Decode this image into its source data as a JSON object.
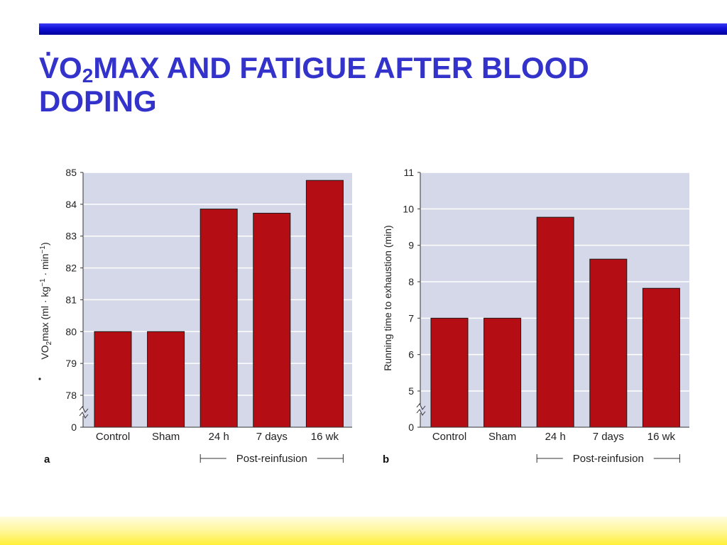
{
  "slide": {
    "title_v": "V",
    "title_dot": "·",
    "title_o": "O",
    "title_sub": "2",
    "title_rest": "MAX AND FATIGUE AFTER BLOOD DOPING"
  },
  "colors": {
    "bar_fill": "#b40d14",
    "plot_bg": "#d5d8e8",
    "title": "#3333cc",
    "top_bar": "#1010d8",
    "bottom_band": "#fff27a"
  },
  "chart_data": [
    {
      "type": "bar",
      "panel_label": "a",
      "categories": [
        "Control",
        "Sham",
        "24 h",
        "7 days",
        "16 wk"
      ],
      "values": [
        80,
        80,
        83.85,
        83.72,
        84.75
      ],
      "ylabel_v": "V",
      "ylabel_o": "O",
      "ylabel_sub": "2",
      "ylabel_rest": "max (ml · kg",
      "ylabel_sup1": "−1",
      "ylabel_mid": " · min",
      "ylabel_sup2": "−1",
      "ylabel_close": ")",
      "ylim": [
        77.5,
        85
      ],
      "axis_break": true,
      "yticks": [
        0,
        78,
        79,
        80,
        81,
        82,
        83,
        84,
        85
      ],
      "ytick_labels": [
        "0",
        "78",
        "79",
        "80",
        "81",
        "82",
        "83",
        "84",
        "85"
      ],
      "grid": true,
      "group_label": "Post-reinfusion",
      "group_categories": [
        "24 h",
        "7 days",
        "16 wk"
      ]
    },
    {
      "type": "bar",
      "panel_label": "b",
      "categories": [
        "Control",
        "Sham",
        "24 h",
        "7 days",
        "16 wk"
      ],
      "values": [
        7.0,
        7.0,
        9.77,
        8.62,
        7.82
      ],
      "ylabel": "Running time to exhaustion (min)",
      "ylim": [
        4.5,
        11
      ],
      "axis_break": true,
      "yticks": [
        0,
        5,
        6,
        7,
        8,
        9,
        10,
        11
      ],
      "ytick_labels": [
        "0",
        "5",
        "6",
        "7",
        "8",
        "9",
        "10",
        "11"
      ],
      "grid": true,
      "group_label": "Post-reinfusion",
      "group_categories": [
        "24 h",
        "7 days",
        "16 wk"
      ]
    }
  ]
}
